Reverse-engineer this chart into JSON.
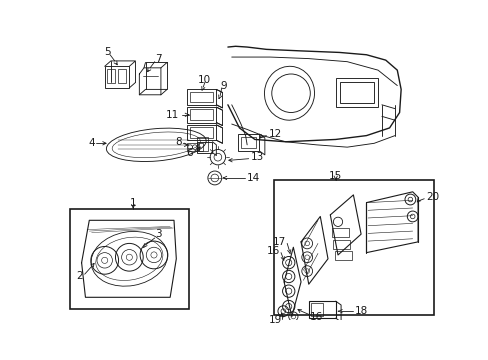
{
  "bg_color": "#ffffff",
  "line_color": "#1a1a1a",
  "fig_width": 4.89,
  "fig_height": 3.6,
  "dpi": 100,
  "fontsize": 7.5,
  "lw": 0.65
}
